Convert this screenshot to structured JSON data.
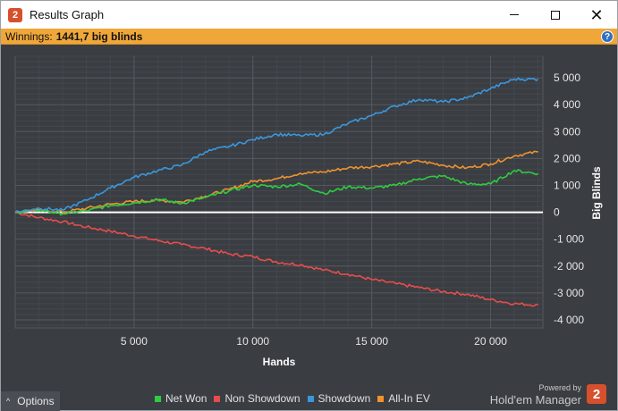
{
  "window": {
    "title": "Results Graph",
    "app_icon_glyph": "2"
  },
  "winnings": {
    "label": "Winnings:",
    "value": "1441,7 big blinds"
  },
  "help_glyph": "?",
  "colors": {
    "net_won": "#2ecc40",
    "non_showdown": "#e84c4c",
    "showdown": "#3a97dc",
    "all_in_ev": "#f0922f",
    "background": "#3a3d42",
    "winbar": "#f0a73a"
  },
  "chart_data": {
    "type": "line",
    "xlabel": "Hands",
    "ylabel": "Big Blinds",
    "xlim": [
      0,
      22200
    ],
    "ylim": [
      -4300,
      5800
    ],
    "x_ticks": [
      5000,
      10000,
      15000,
      20000
    ],
    "x_tick_labels": [
      "5 000",
      "10 000",
      "15 000",
      "20 000"
    ],
    "y_ticks": [
      5000,
      4000,
      3000,
      2000,
      1000,
      0,
      -1000,
      -2000,
      -3000,
      -4000
    ],
    "y_tick_labels": [
      "5 000",
      "4 000",
      "3 000",
      "2 000",
      "1 000",
      "0",
      "-1 000",
      "-2 000",
      "-3 000",
      "-4 000"
    ],
    "grid": true,
    "legend_position": "bottom",
    "x": [
      0,
      1000,
      2000,
      3000,
      4000,
      5000,
      6000,
      7000,
      8000,
      9000,
      10000,
      11000,
      12000,
      13000,
      14000,
      15000,
      16000,
      17000,
      18000,
      19000,
      20000,
      21000,
      22000
    ],
    "series": [
      {
        "name": "Net Won",
        "color_key": "net_won",
        "values": [
          0,
          80,
          -50,
          50,
          250,
          350,
          480,
          330,
          550,
          800,
          1000,
          950,
          1050,
          700,
          950,
          900,
          1000,
          1250,
          1350,
          1050,
          1050,
          1550,
          1440
        ]
      },
      {
        "name": "Non Showdown",
        "color_key": "non_showdown",
        "values": [
          0,
          -200,
          -350,
          -550,
          -700,
          -880,
          -1050,
          -1200,
          -1350,
          -1550,
          -1650,
          -1850,
          -1950,
          -2150,
          -2300,
          -2500,
          -2650,
          -2800,
          -2950,
          -3050,
          -3250,
          -3400,
          -3450
        ]
      },
      {
        "name": "Showdown",
        "color_key": "showdown",
        "values": [
          0,
          150,
          80,
          450,
          900,
          1300,
          1550,
          1750,
          2250,
          2450,
          2700,
          2900,
          2850,
          2900,
          3300,
          3600,
          3950,
          4200,
          4100,
          4250,
          4600,
          4950,
          4950
        ]
      },
      {
        "name": "All-In EV",
        "color_key": "all_in_ev",
        "values": [
          0,
          80,
          0,
          150,
          300,
          400,
          450,
          380,
          600,
          850,
          1150,
          1250,
          1450,
          1500,
          1650,
          1700,
          1800,
          1900,
          1750,
          1650,
          1800,
          2100,
          2250
        ]
      }
    ]
  },
  "bottom": {
    "options_label": "Options",
    "options_caret": "^",
    "legend": [
      {
        "label": "Net Won",
        "color_key": "net_won"
      },
      {
        "label": "Non Showdown",
        "color_key": "non_showdown"
      },
      {
        "label": "Showdown",
        "color_key": "showdown"
      },
      {
        "label": "All-In EV",
        "color_key": "all_in_ev"
      }
    ],
    "powered_by": "Powered by",
    "brand_name": "Hold'em Manager",
    "brand_logo_glyph": "2"
  }
}
